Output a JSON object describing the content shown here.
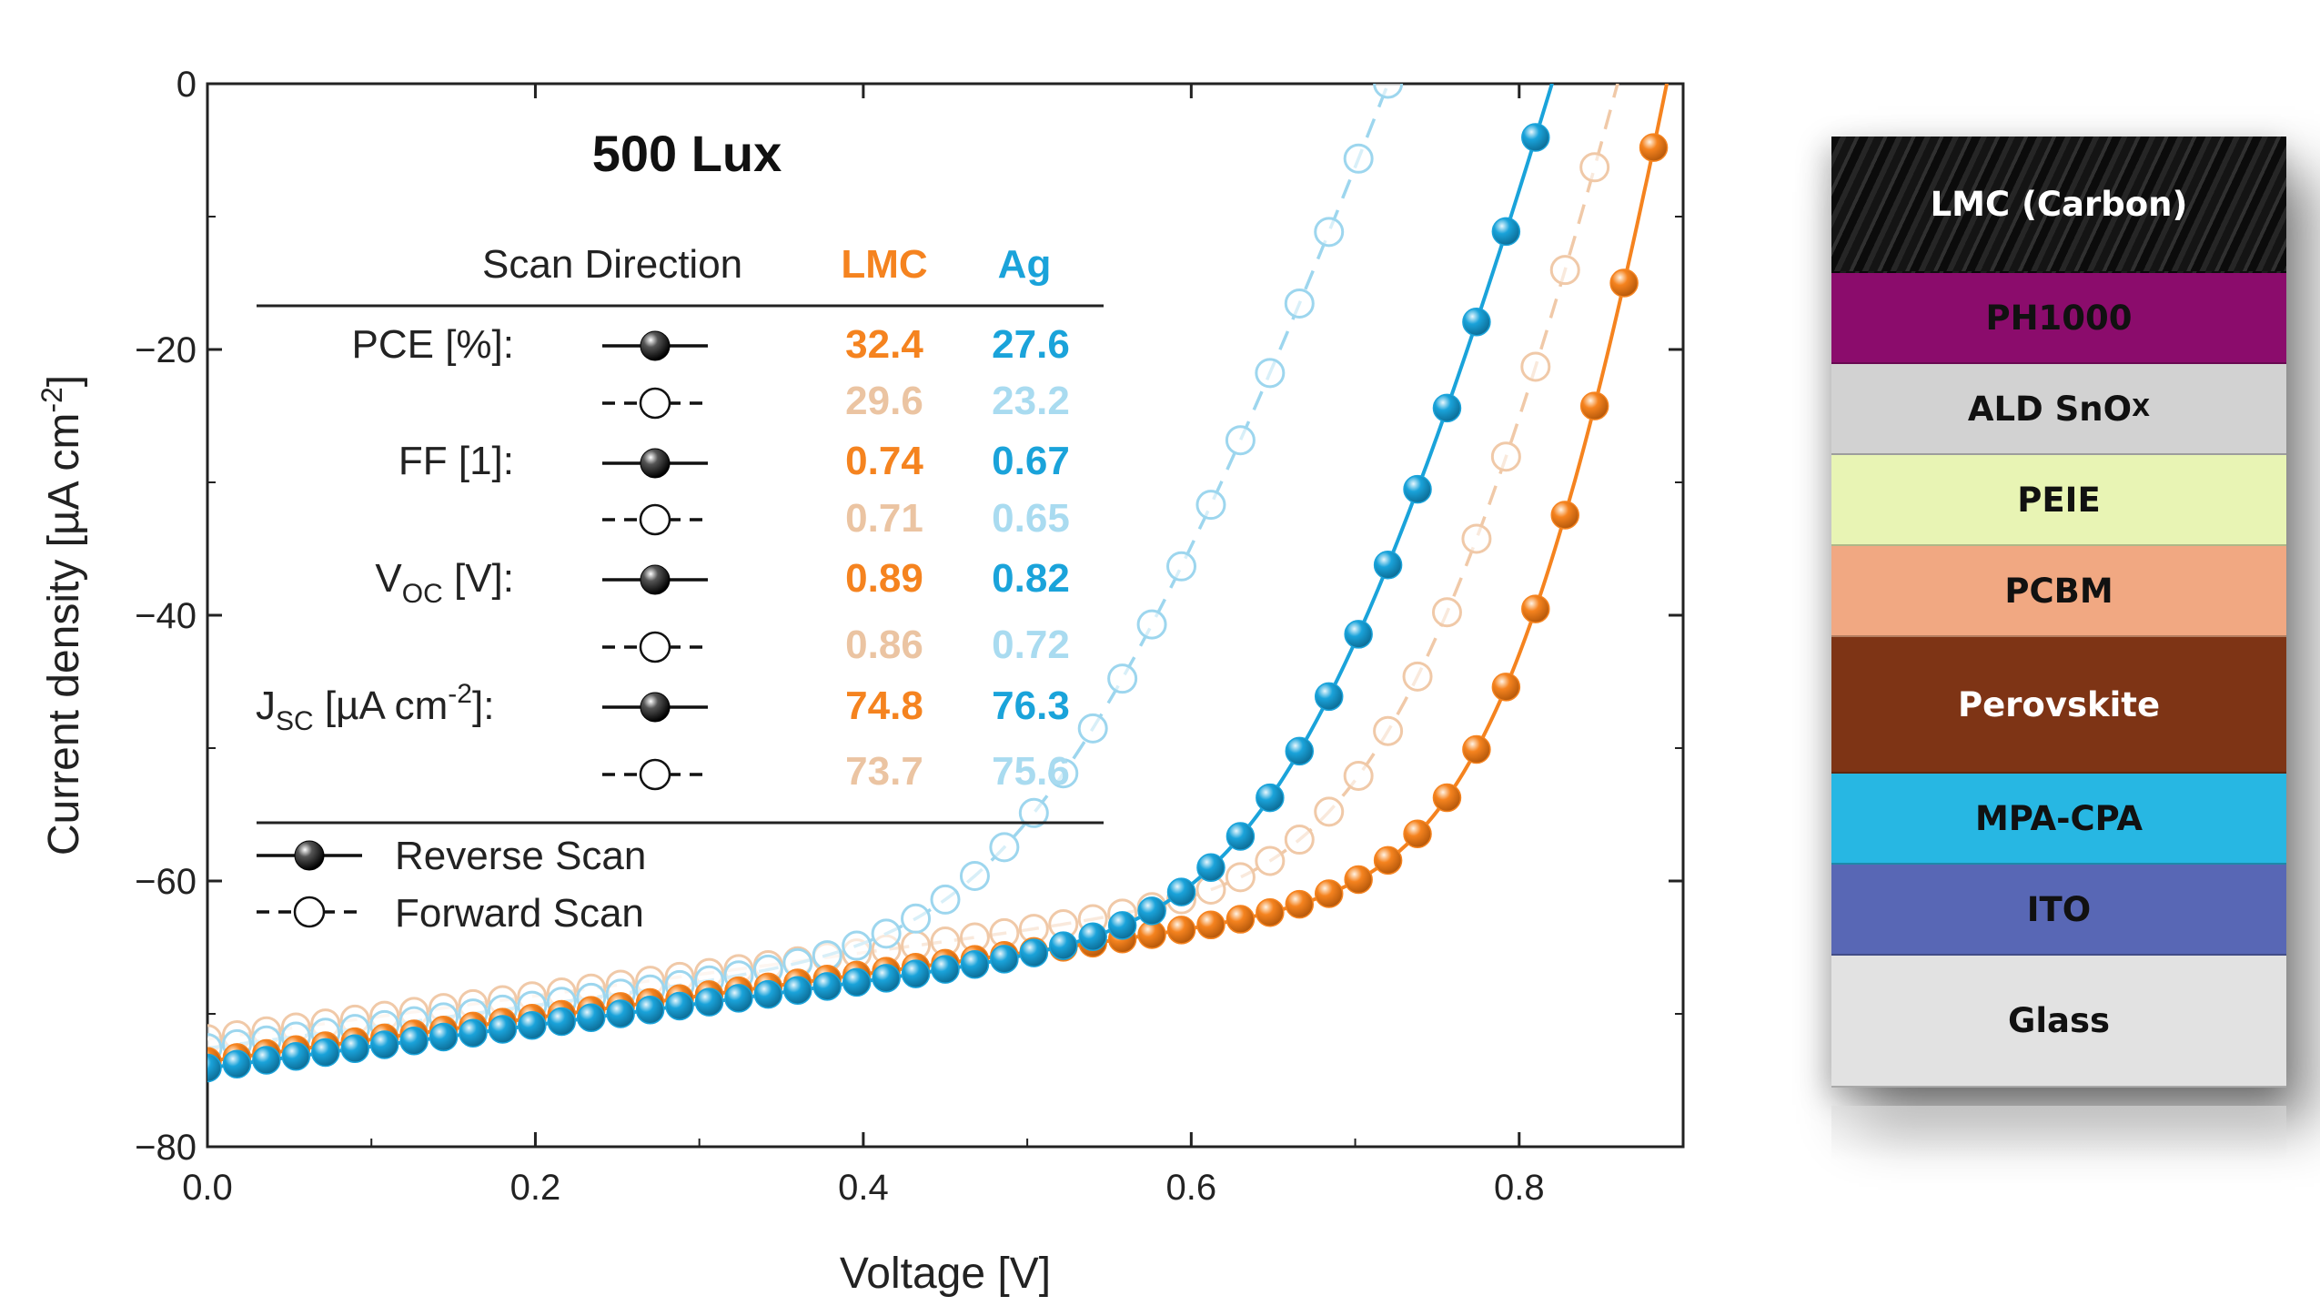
{
  "chart_data": {
    "type": "line",
    "title": "500 Lux",
    "xlabel": "Voltage [V]",
    "ylabel": "Current density [µA cm⁻²]",
    "xlim": [
      0.0,
      0.9
    ],
    "ylim": [
      -80,
      0
    ],
    "xticks": [
      0.0,
      0.2,
      0.4,
      0.6,
      0.8
    ],
    "xtick_labels": [
      "0.0",
      "0.2",
      "0.4",
      "0.6",
      "0.8"
    ],
    "yticks": [
      0,
      -20,
      -40,
      -60,
      -80
    ],
    "ytick_labels": [
      "0",
      "−20",
      "−40",
      "−60",
      "−80"
    ],
    "series": [
      {
        "name": "LMC Reverse Scan",
        "color": "#F5831F",
        "style": "solid",
        "marker": "filled",
        "voc": 0.89,
        "jsc": 74.8,
        "j0": 2e-09,
        "n": 1.5,
        "rs": 1000,
        "rsh": 60000
      },
      {
        "name": "LMC Forward Scan",
        "color": "#F0C9A8",
        "style": "dashed",
        "marker": "open",
        "voc": 0.86,
        "jsc": 73.7,
        "j0": 5e-09,
        "n": 1.6,
        "rs": 1500,
        "rsh": 60000
      },
      {
        "name": "Ag Reverse Scan",
        "color": "#1AA3DA",
        "style": "solid",
        "marker": "filled",
        "voc": 0.82,
        "jsc": 76.3,
        "j0": 4e-09,
        "n": 1.6,
        "rs": 1800,
        "rsh": 60000
      },
      {
        "name": "Ag Forward Scan",
        "color": "#9DD6EE",
        "style": "dashed",
        "marker": "open",
        "voc": 0.72,
        "jsc": 75.6,
        "j0": 1e-08,
        "n": 1.65,
        "rs": 2500,
        "rsh": 60000
      }
    ],
    "table": {
      "header": {
        "scan_direction": "Scan Direction",
        "lmc": "LMC",
        "ag": "Ag"
      },
      "rows": [
        {
          "label": "PCE [%]:",
          "reverse": {
            "lmc": "32.4",
            "ag": "27.6"
          },
          "forward": {
            "lmc": "29.6",
            "ag": "23.2"
          }
        },
        {
          "label": "FF [1]:",
          "reverse": {
            "lmc": "0.74",
            "ag": "0.67"
          },
          "forward": {
            "lmc": "0.71",
            "ag": "0.65"
          }
        },
        {
          "label": "V",
          "label_sub": "OC",
          "label_tail": " [V]:",
          "reverse": {
            "lmc": "0.89",
            "ag": "0.82"
          },
          "forward": {
            "lmc": "0.86",
            "ag": "0.72"
          }
        },
        {
          "label": "J",
          "label_sub": "SC",
          "label_tail": " [µA cm",
          "label_sup": "-2",
          "label_end": "]:",
          "reverse": {
            "lmc": "74.8",
            "ag": "76.3"
          },
          "forward": {
            "lmc": "73.7",
            "ag": "75.6"
          }
        }
      ],
      "colors": {
        "lmc_reverse": "#F5831F",
        "lmc_forward": "#EBC4A2",
        "ag_reverse": "#1AA3DA",
        "ag_forward": "#A9DBF0"
      }
    },
    "legend": {
      "reverse": "Reverse Scan",
      "forward": "Forward Scan",
      "placement": "bottom-left"
    }
  },
  "device_stack": {
    "layers": [
      {
        "name": "LMC (Carbon)",
        "color": "#1a1a1a",
        "text_color": "#ffffff"
      },
      {
        "name": "PH1000",
        "color": "#8B0C6C",
        "text_color": "#111111"
      },
      {
        "name": "ALD SnO",
        "sub": "X",
        "color": "#D2D2D2",
        "text_color": "#111111"
      },
      {
        "name": "PEIE",
        "color": "#E8F4B4",
        "text_color": "#111111"
      },
      {
        "name": "PCBM",
        "color": "#F1A882",
        "text_color": "#111111"
      },
      {
        "name": "Perovskite",
        "color": "#7E3415",
        "text_color": "#ffffff"
      },
      {
        "name": "MPA-CPA",
        "color": "#27B7E3",
        "text_color": "#111111"
      },
      {
        "name": "ITO",
        "color": "#5867B5",
        "text_color": "#111111"
      },
      {
        "name": "Glass",
        "color": "#E2E2E2",
        "text_color": "#111111"
      }
    ]
  }
}
